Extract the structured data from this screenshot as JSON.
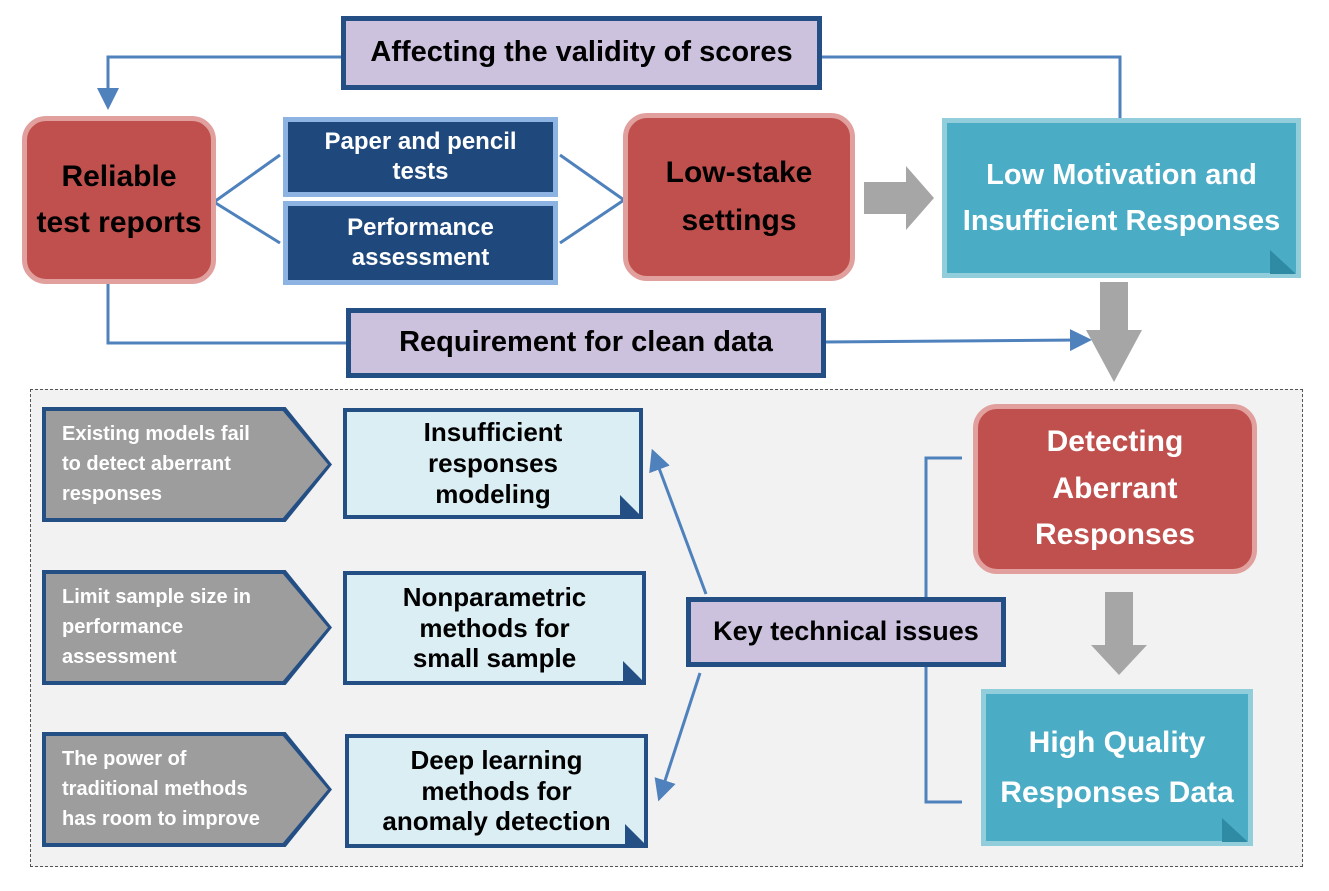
{
  "top_flow": {
    "validity_label": "Affecting the validity of scores",
    "reliable_reports": "Reliable\ntest reports",
    "paper_pencil": "Paper and pencil\ntests",
    "performance": "Performance\nassessment",
    "low_stake": "Low-stake\nsettings",
    "low_motivation": "Low Motivation and\nInsufficient Responses",
    "clean_data_label": "Requirement for clean data"
  },
  "issues": {
    "rows": [
      {
        "problem": "Existing models fail\nto detect aberrant\nresponses",
        "method": "Insufficient\nresponses\nmodeling"
      },
      {
        "problem": "Limit sample size in\nperformance\nassessment",
        "method": "Nonparametric\nmethods for\nsmall sample"
      },
      {
        "problem": "The power of\ntraditional methods\nhas room to improve",
        "method": "Deep learning\nmethods for\nanomaly detection"
      }
    ],
    "key_label": "Key technical issues",
    "detecting": "Detecting\nAberrant\nResponses",
    "high_quality": "High Quality\nResponses Data"
  },
  "colors": {
    "red": "#c0504d",
    "navy": "#1f497d",
    "teal": "#4bacc6",
    "lavender": "#cdc2de",
    "grey_arrow": "#9d9d9d",
    "connector": "#4f81bd"
  }
}
